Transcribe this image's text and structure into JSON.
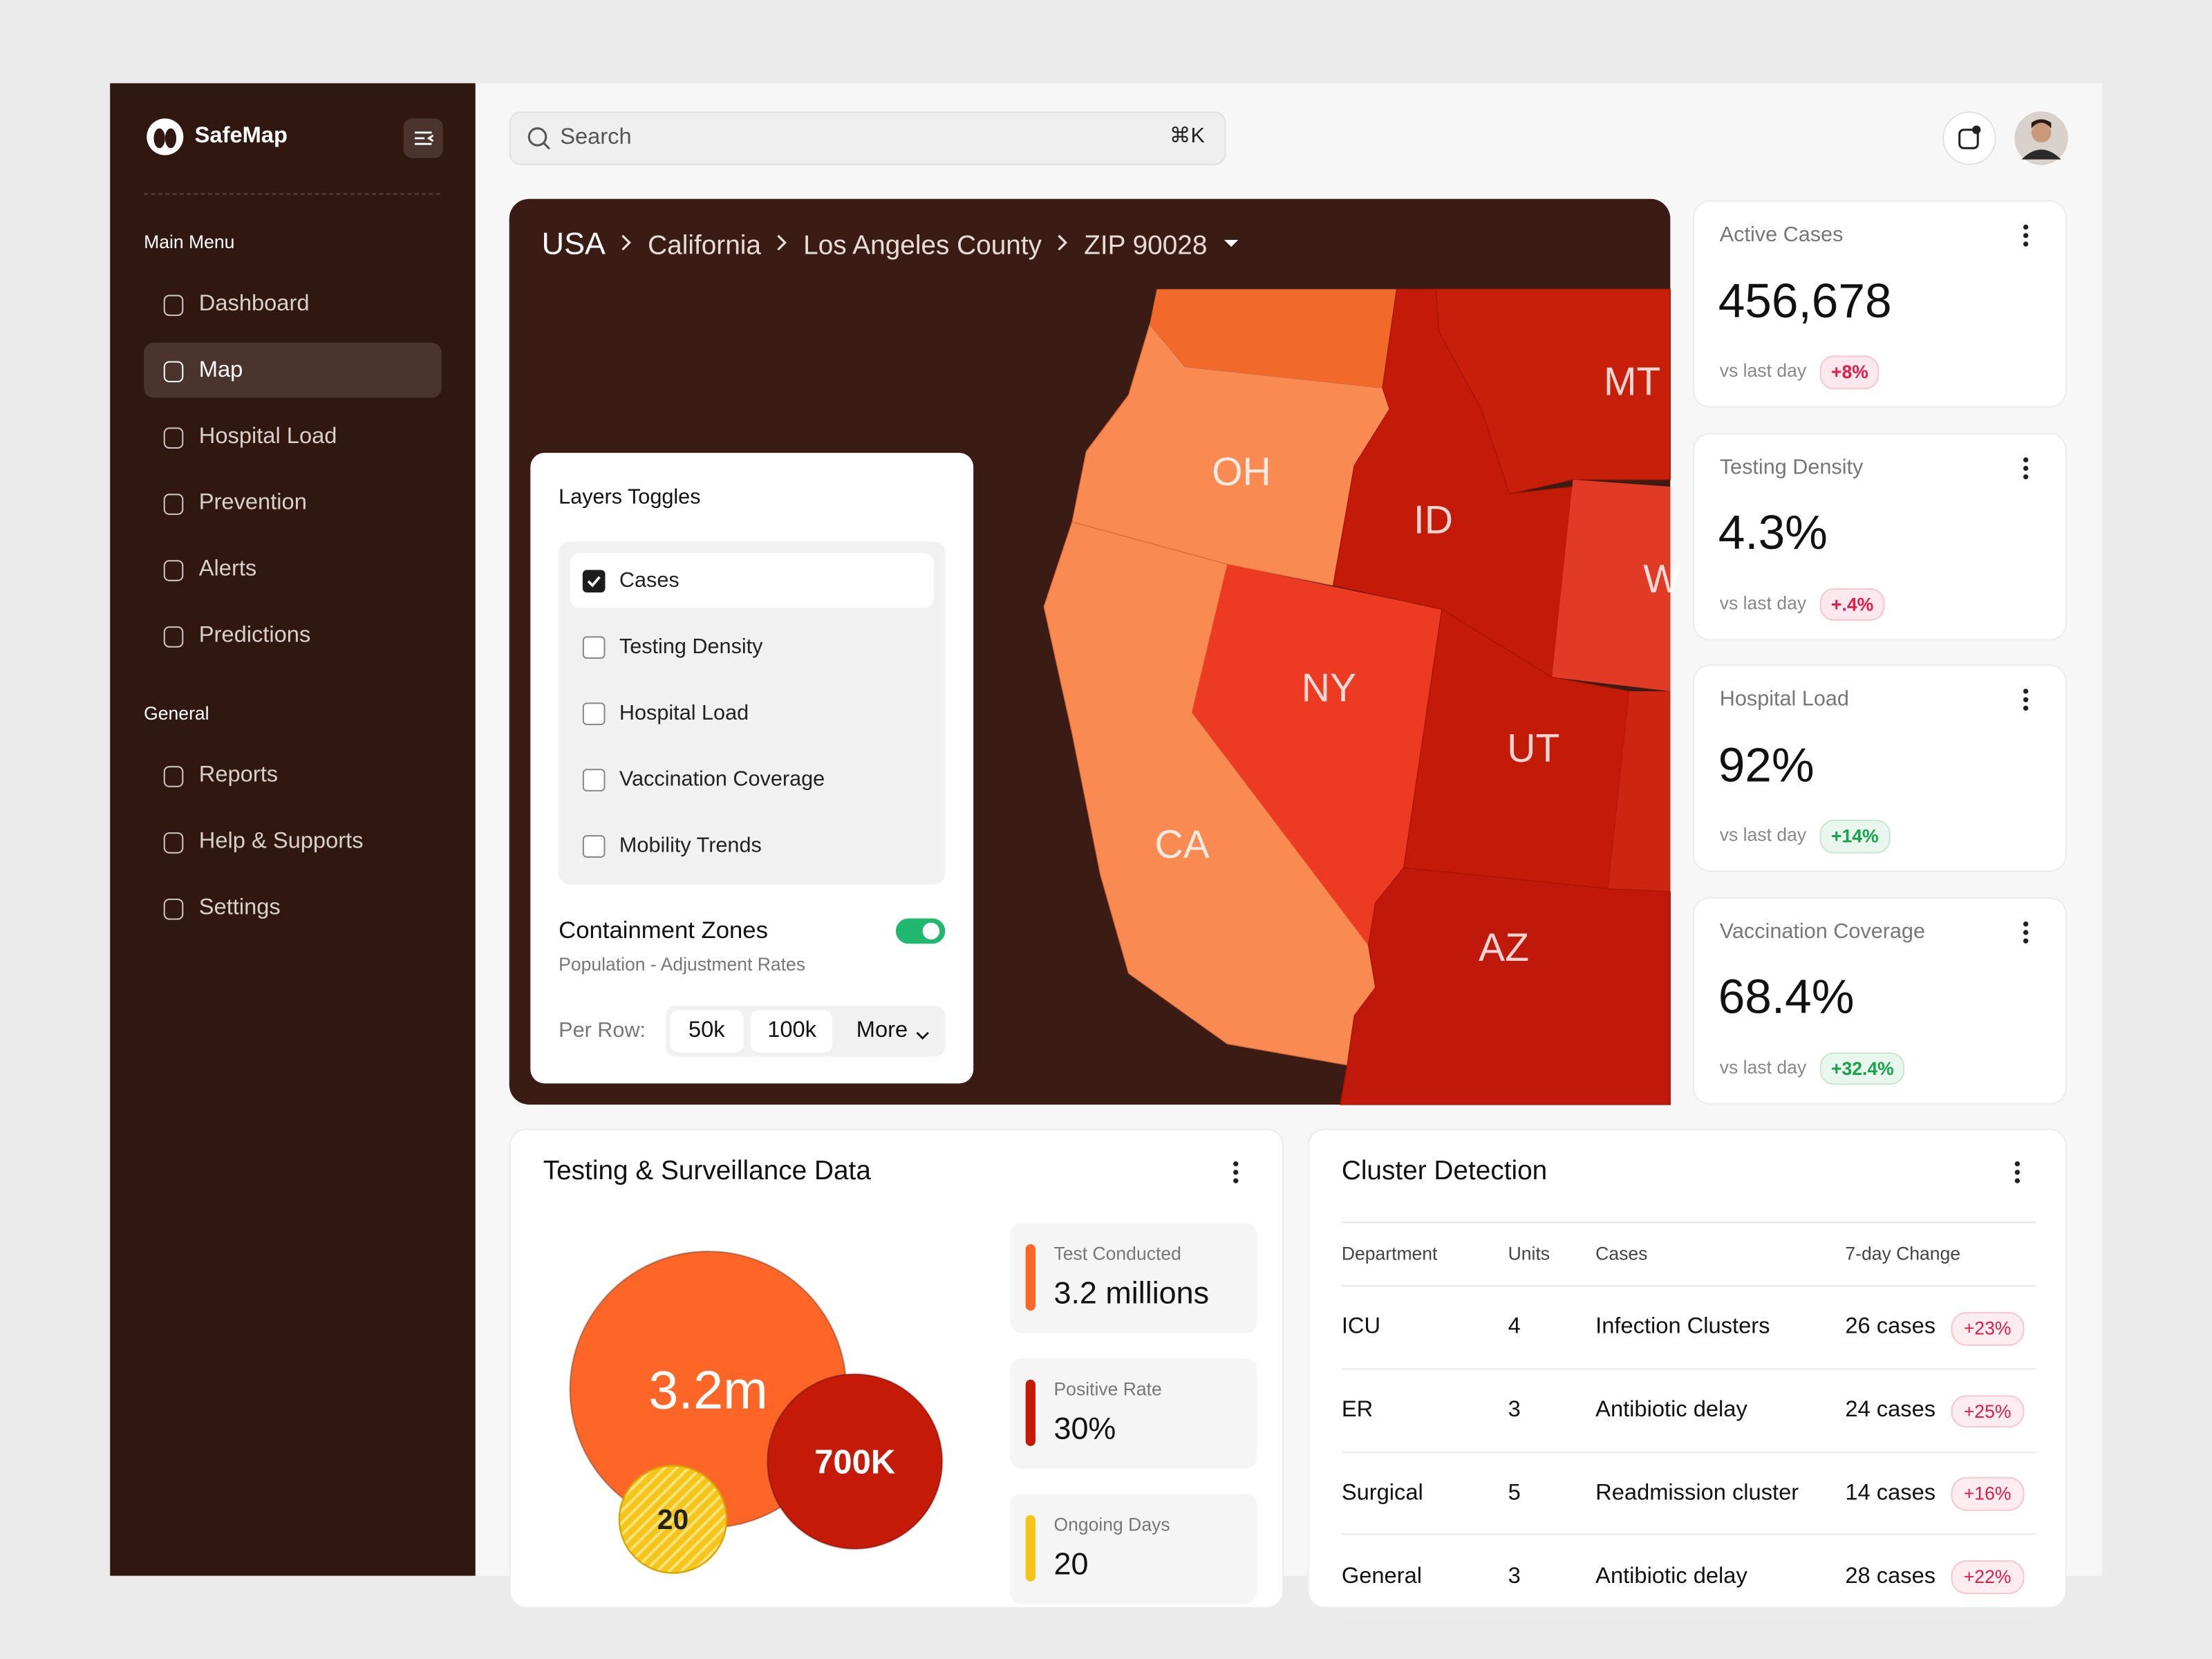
{
  "sidebar": {
    "brand": "SafeMap",
    "sections": [
      {
        "title": "Main Menu",
        "items": [
          "Dashboard",
          "Map",
          "Hospital Load",
          "Prevention",
          "Alerts",
          "Predictions"
        ],
        "active": 1
      },
      {
        "title": "General",
        "items": [
          "Reports",
          "Help & Supports",
          "Settings"
        ],
        "active": null
      }
    ]
  },
  "search": {
    "placeholder": "Search",
    "shortcut": "⌘K"
  },
  "map": {
    "breadcrumb": [
      "USA",
      "California",
      "Los Angeles County",
      "ZIP 90028"
    ],
    "states": [
      "MT",
      "OH",
      "ID",
      "W",
      "NY",
      "UT",
      "CA",
      "AZ"
    ],
    "layers": {
      "title": "Layers Toggles",
      "options": [
        {
          "label": "Cases",
          "checked": true
        },
        {
          "label": "Testing Density",
          "checked": false
        },
        {
          "label": "Hospital Load",
          "checked": false
        },
        {
          "label": "Vaccination Coverage",
          "checked": false
        },
        {
          "label": "Mobility Trends",
          "checked": false
        }
      ],
      "containment": {
        "title": "Containment Zones",
        "subtitle": "Population - Adjustment Rates",
        "enabled": true
      },
      "per_row": {
        "label": "Per Row:",
        "options": [
          "50k",
          "100k",
          "More"
        ]
      }
    }
  },
  "stats": [
    {
      "title": "Active Cases",
      "value": "456,678",
      "note": "vs last day",
      "change": "+8%",
      "color": "#e11d48"
    },
    {
      "title": "Testing Density",
      "value": "4.3%",
      "note": "vs last day",
      "change": "+.4%",
      "color": "#e11d48"
    },
    {
      "title": "Hospital Load",
      "value": "92%",
      "note": "vs last day",
      "change": "+14%",
      "color": "#16a34a"
    },
    {
      "title": "Vaccination Coverage",
      "value": "68.4%",
      "note": "vs last day",
      "change": "+32.4%",
      "color": "#16a34a"
    }
  ],
  "testing": {
    "title": "Testing & Surveillance Data",
    "bubbles": [
      {
        "label": "3.2m",
        "color": "#fe6627"
      },
      {
        "label": "700K",
        "color": "#c61a09"
      },
      {
        "label": "20",
        "color": "#f5c518"
      }
    ],
    "metrics": [
      {
        "label": "Test Conducted",
        "value": "3.2 millions",
        "color": "#fe6627"
      },
      {
        "label": "Positive Rate",
        "value": "30%",
        "color": "#c61a09"
      },
      {
        "label": "Ongoing Days",
        "value": "20",
        "color": "#f5c518"
      }
    ]
  },
  "clusters": {
    "title": "Cluster Detection",
    "columns": [
      "Department",
      "Units",
      "Cases",
      "7-day Change"
    ],
    "change_color": "#e11d48",
    "rows": [
      [
        "ICU",
        "4",
        "Infection Clusters",
        "26 cases",
        "+23%"
      ],
      [
        "ER",
        "3",
        "Antibiotic delay",
        "24 cases",
        "+25%"
      ],
      [
        "Surgical",
        "5",
        "Readmission cluster",
        "14 cases",
        "+16%"
      ],
      [
        "General",
        "3",
        "Antibiotic delay",
        "28 cases",
        "+22%"
      ]
    ]
  }
}
